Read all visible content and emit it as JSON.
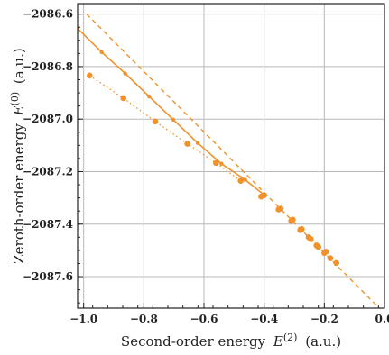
{
  "chart_data": {
    "type": "scatter",
    "title": "",
    "xlabel": "Second-order energy",
    "xlabel_symbol": "E",
    "xlabel_superscript": "(2)",
    "xlabel_unit": "(a.u.)",
    "ylabel": "Zeroth-order energy",
    "ylabel_symbol": "E",
    "ylabel_superscript": "(0)",
    "ylabel_unit": "(a.u.)",
    "xlim": [
      -1.02,
      0.0
    ],
    "ylim": [
      -2087.72,
      -2086.56
    ],
    "x_ticks": [
      -1.0,
      -0.8,
      -0.6,
      -0.4,
      -0.2,
      0.0
    ],
    "x_tick_labels": [
      "−1.0",
      "−0.8",
      "−0.6",
      "−0.4",
      "−0.2",
      "0.0"
    ],
    "y_ticks": [
      -2086.6,
      -2086.8,
      -2087.0,
      -2087.2,
      -2087.4,
      -2087.6
    ],
    "y_tick_labels": [
      "−2086.6",
      "−2086.8",
      "−2087.0",
      "−2087.2",
      "−2087.4",
      "−2087.6"
    ],
    "grid": true,
    "color": "#f0912a",
    "series": [
      {
        "style": "solid",
        "marker_size": "small",
        "x": [
          -1.02,
          -0.94,
          -0.862,
          -0.782,
          -0.702,
          -0.621,
          -0.542,
          -0.463,
          -0.4
        ],
        "y": [
          -2086.655,
          -2086.745,
          -2086.826,
          -2086.914,
          -2087.002,
          -2087.091,
          -2087.17,
          -2087.231,
          -2087.289
        ]
      },
      {
        "style": "dotted",
        "marker_size": "large",
        "x": [
          -0.98,
          -0.868,
          -0.762,
          -0.655,
          -0.56,
          -0.478
        ],
        "y": [
          -2086.834,
          -2086.92,
          -2087.009,
          -2087.094,
          -2087.167,
          -2087.235
        ]
      },
      {
        "style": "dashed",
        "marker_size": "none",
        "x": [
          -0.99,
          0.0
        ],
        "y": [
          -2086.6,
          -2087.74
        ]
      },
      {
        "style": "markers",
        "marker_size": "large",
        "x": [
          -0.41,
          -0.4,
          -0.352,
          -0.345,
          -0.31,
          -0.305,
          -0.28,
          -0.275,
          -0.252,
          -0.245,
          -0.226,
          -0.22,
          -0.2,
          -0.195,
          -0.18,
          -0.16
        ],
        "y": [
          -2087.295,
          -2087.29,
          -2087.344,
          -2087.341,
          -2087.388,
          -2087.383,
          -2087.423,
          -2087.419,
          -2087.45,
          -2087.457,
          -2087.481,
          -2087.487,
          -2087.51,
          -2087.505,
          -2087.53,
          -2087.548
        ]
      }
    ]
  }
}
